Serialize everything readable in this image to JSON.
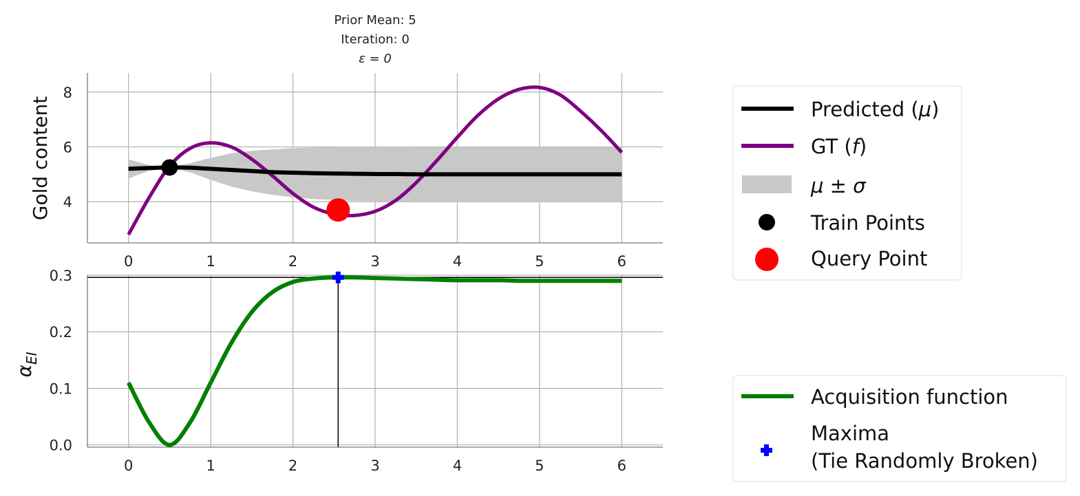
{
  "title": {
    "line1": "Prior Mean: 5",
    "line2": "Iteration: 0",
    "line3": "ε = 0"
  },
  "chart_data": [
    {
      "type": "line",
      "ylabel": "Gold content",
      "xlim": [
        -0.5,
        6.5
      ],
      "ylim": [
        2.5,
        8.7
      ],
      "xticks": [
        0,
        1,
        2,
        3,
        4,
        5,
        6
      ],
      "yticks": [
        4,
        6,
        8
      ],
      "grid": true,
      "x": [
        0,
        0.25,
        0.5,
        0.75,
        1.0,
        1.25,
        1.5,
        1.75,
        2.0,
        2.25,
        2.5,
        2.75,
        3.0,
        3.25,
        3.5,
        3.75,
        4.0,
        4.25,
        4.5,
        4.75,
        5.0,
        5.25,
        5.5,
        5.75,
        6.0
      ],
      "series": [
        {
          "name": "Predicted (μ)",
          "color": "#000000",
          "values": [
            5.2,
            5.23,
            5.25,
            5.24,
            5.2,
            5.16,
            5.12,
            5.08,
            5.06,
            5.04,
            5.03,
            5.02,
            5.01,
            5.01,
            5.0,
            5.0,
            5.0,
            5.0,
            5.0,
            5.0,
            5.0,
            5.0,
            5.0,
            5.0,
            5.0
          ]
        },
        {
          "name": "GT (f)",
          "color": "#800080",
          "values": [
            2.8,
            4.15,
            5.3,
            5.95,
            6.15,
            6.0,
            5.55,
            4.95,
            4.3,
            3.8,
            3.55,
            3.5,
            3.65,
            4.05,
            4.7,
            5.5,
            6.35,
            7.15,
            7.75,
            8.1,
            8.17,
            7.9,
            7.3,
            6.6,
            5.8
          ]
        }
      ],
      "band": {
        "name": "μ ± σ",
        "color": "#c8c8c8",
        "lower": [
          4.85,
          5.13,
          5.25,
          5.07,
          4.8,
          4.55,
          4.38,
          4.25,
          4.16,
          4.1,
          4.06,
          4.03,
          4.02,
          4.01,
          4.0,
          4.0,
          4.0,
          4.0,
          4.0,
          4.0,
          4.0,
          4.0,
          4.0,
          4.0,
          4.0
        ],
        "upper": [
          5.55,
          5.33,
          5.25,
          5.41,
          5.6,
          5.77,
          5.86,
          5.91,
          5.96,
          5.98,
          6.0,
          6.01,
          6.0,
          6.01,
          6.0,
          6.0,
          6.0,
          6.0,
          6.0,
          6.0,
          6.0,
          6.0,
          6.0,
          6.0,
          6.0
        ]
      },
      "points": [
        {
          "name": "Train Points",
          "color": "#000000",
          "x": [
            0.5
          ],
          "y": [
            5.25
          ]
        },
        {
          "name": "Query Point",
          "color": "#ff0000",
          "x": [
            2.55
          ],
          "y": [
            3.7
          ]
        }
      ]
    },
    {
      "type": "line",
      "ylabel": "α_EI",
      "xlim": [
        -0.5,
        6.5
      ],
      "ylim": [
        -0.004,
        0.3
      ],
      "xticks": [
        0,
        1,
        2,
        3,
        4,
        5,
        6
      ],
      "yticks": [
        0.0,
        0.1,
        0.2,
        0.3
      ],
      "grid": true,
      "x": [
        0,
        0.25,
        0.5,
        0.75,
        1.0,
        1.25,
        1.5,
        1.75,
        2.0,
        2.25,
        2.5,
        2.75,
        3.0,
        3.25,
        3.5,
        3.75,
        4.0,
        4.25,
        4.5,
        4.75,
        5.0,
        5.25,
        5.5,
        5.75,
        6.0
      ],
      "series": [
        {
          "name": "Acquisition function",
          "color": "#008000",
          "values": [
            0.11,
            0.04,
            0.0,
            0.04,
            0.11,
            0.18,
            0.235,
            0.27,
            0.288,
            0.294,
            0.296,
            0.296,
            0.295,
            0.294,
            0.293,
            0.292,
            0.291,
            0.291,
            0.291,
            0.29,
            0.29,
            0.29,
            0.29,
            0.29,
            0.29
          ]
        }
      ],
      "max_line": {
        "y": 0.296,
        "x": 2.55
      },
      "points": [
        {
          "name": "Maxima\n(Tie Randomly Broken)",
          "color": "#0000ff",
          "x": [
            2.55
          ],
          "y": [
            0.296
          ]
        }
      ]
    }
  ],
  "legend_top": {
    "predicted": "Predicted (",
    "predicted_sym": "μ",
    "predicted_close": ")",
    "gt": "GT (",
    "gt_sym": "f",
    "gt_close": ")",
    "band": "μ ± σ",
    "train": "Train Points",
    "query": "Query Point"
  },
  "legend_bottom": {
    "acq": "Acquisition function",
    "maxima_line1": "Maxima",
    "maxima_line2": "(Tie Randomly Broken)"
  }
}
